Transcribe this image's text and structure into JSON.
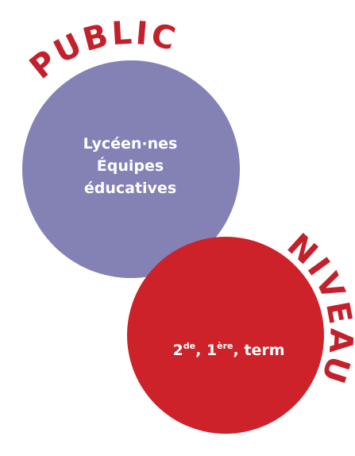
{
  "public": {
    "label": "PUBLIC",
    "lines": [
      "Lycéen·nes",
      "Équipes",
      "éducatives"
    ]
  },
  "niveau": {
    "label": "NIVEAU",
    "separator": ", ",
    "levels": [
      {
        "base": "2",
        "sup": "de"
      },
      {
        "base": "1",
        "sup": "ère"
      },
      {
        "base": "term"
      }
    ]
  }
}
